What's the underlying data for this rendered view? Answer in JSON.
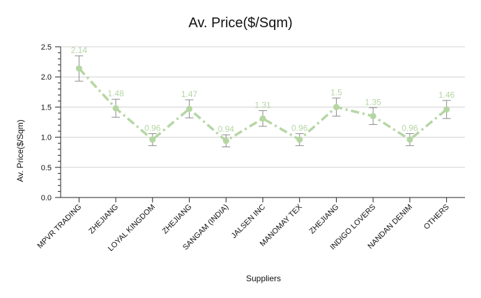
{
  "chart_data": {
    "type": "line",
    "title": "Av. Price($/Sqm)",
    "xlabel": "Suppliers",
    "ylabel": "Av. Price($/Sqm)",
    "ylim": [
      0,
      2.5
    ],
    "yticks": [
      "0.0",
      "0.5",
      "1.0",
      "1.5",
      "2.0",
      "2.5"
    ],
    "grid": true,
    "categories": [
      "MPVR TRADING",
      "ZHEJIANG",
      "LOYAL KINGDOM",
      "ZHEJIANG",
      "SANGAM (INDIA)",
      "JALSEN INC",
      "MANOMAY TEX",
      "ZHEJIANG",
      "INDIGO LOVERS",
      "NANDAN DENIM",
      "OTHERS"
    ],
    "values": [
      2.14,
      1.48,
      0.96,
      1.47,
      0.94,
      1.31,
      0.96,
      1.5,
      1.35,
      0.96,
      1.46
    ],
    "value_labels": [
      "2.14",
      "1.48",
      "0.96",
      "1.47",
      "0.94",
      "1.31",
      "0.96",
      "1.5",
      "1.35",
      "0.96",
      "1.46"
    ],
    "error_low": [
      1.93,
      1.33,
      0.86,
      1.32,
      0.84,
      1.18,
      0.86,
      1.35,
      1.21,
      0.86,
      1.31
    ],
    "error_high": [
      2.35,
      1.63,
      1.06,
      1.62,
      1.04,
      1.44,
      1.06,
      1.65,
      1.49,
      1.06,
      1.61
    ],
    "line_style": "dash-dot",
    "colors": {
      "series": "#b5d6a3",
      "error_bar": "#8a8a8a",
      "grid": "#d0d0d0",
      "axis": "#222222",
      "text": "#111111"
    }
  }
}
